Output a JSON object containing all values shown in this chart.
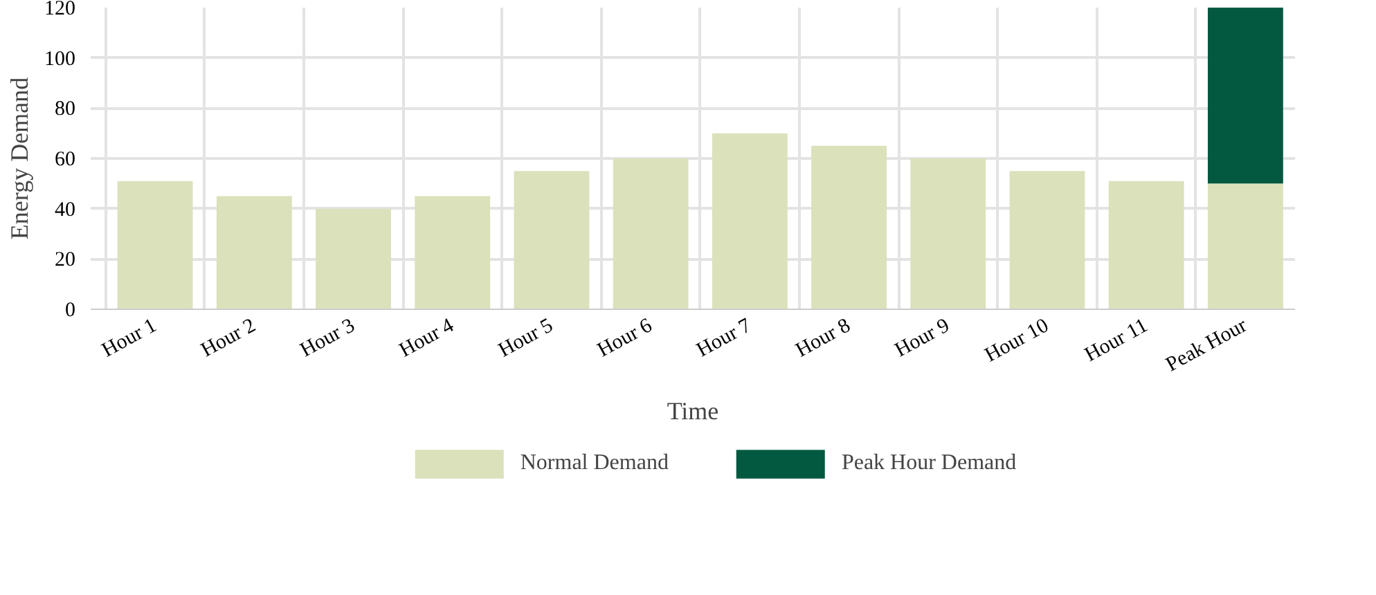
{
  "chart_data": {
    "type": "bar",
    "stacked": true,
    "xlabel": "Time",
    "ylabel": "Energy Demand",
    "categories": [
      "Hour 1",
      "Hour 2",
      "Hour 3",
      "Hour 4",
      "Hour 5",
      "Hour 6",
      "Hour 7",
      "Hour 8",
      "Hour 9",
      "Hour 10",
      "Hour 11",
      "Peak Hour"
    ],
    "series": [
      {
        "name": "Normal Demand",
        "color": "#dbe1bb",
        "values": [
          51,
          45,
          40,
          45,
          55,
          60,
          70,
          65,
          60,
          55,
          51,
          50
        ]
      },
      {
        "name": "Peak Hour Demand",
        "color": "#025940",
        "values": [
          null,
          null,
          null,
          null,
          null,
          null,
          null,
          null,
          null,
          null,
          null,
          70
        ]
      }
    ],
    "ylim": [
      0,
      120
    ],
    "yticks": [
      0,
      20,
      40,
      60,
      80,
      100,
      120
    ],
    "grid": true,
    "legend": "bottom"
  }
}
